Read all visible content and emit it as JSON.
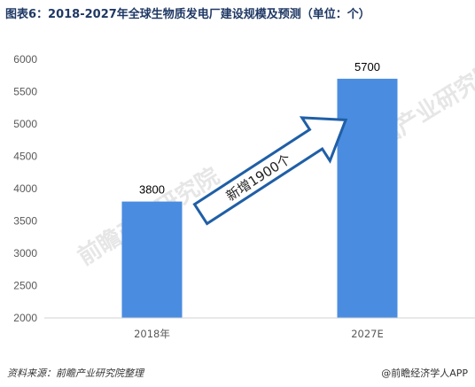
{
  "title": "图表6：2018-2027年全球生物质发电厂建设规模及预测（单位：个）",
  "chart_data": {
    "type": "bar",
    "categories": [
      "2018年",
      "2027E"
    ],
    "values": [
      3800,
      5700
    ],
    "data_labels": [
      "3800",
      "5700"
    ],
    "ylim": [
      2000,
      6000
    ],
    "yticks": [
      2000,
      2500,
      3000,
      3500,
      4000,
      4500,
      5000,
      5500,
      6000
    ],
    "annotation": "新增1900个",
    "bar_color": "#4a8ce0",
    "grid": false
  },
  "watermark": "前瞻产业研究院",
  "footer": {
    "source": "资料来源：前瞻产业研究院整理",
    "brand": "@前瞻经济学人APP"
  }
}
